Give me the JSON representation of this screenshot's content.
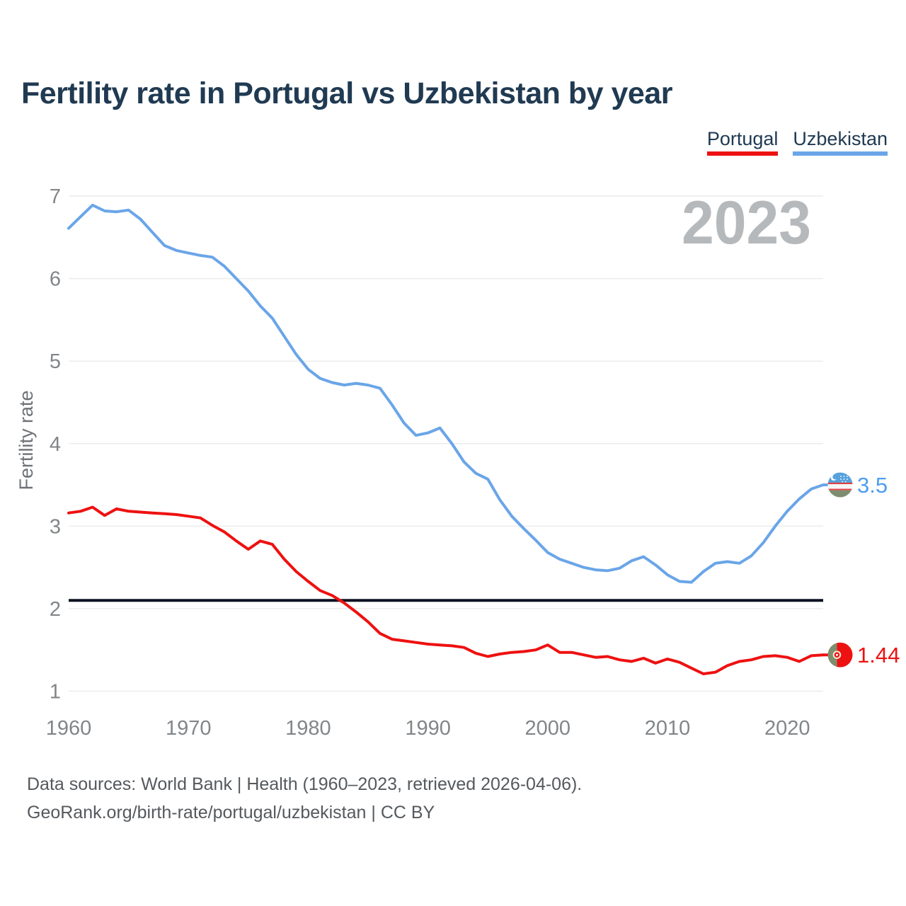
{
  "title": "Fertility rate in Portugal vs Uzbekistan by year",
  "legend": [
    {
      "label": "Portugal",
      "color": "#ee1111"
    },
    {
      "label": "Uzbekistan",
      "color": "#6aa5e8"
    }
  ],
  "footer": {
    "line1": "Data sources: World Bank | Health (1960–2023, retrieved 2026-04-06).",
    "line2": "GeoRank.org/birth-rate/portugal/uzbekistan | CC BY"
  },
  "colors": {
    "title_text": "#203a52",
    "tick_text": "#828689",
    "grid": "#ececec",
    "watermark": "#b6b9bc",
    "footer_text": "#55595d",
    "reference_line": "#0c1220"
  },
  "chart_data": {
    "type": "line",
    "title": "Fertility rate in Portugal vs Uzbekistan by year",
    "ylabel": "Fertility rate",
    "xlabel": "",
    "watermark": "2023",
    "grid": "horizontal",
    "legend_position": "top-right",
    "xlim": [
      1960,
      2023
    ],
    "ylim": [
      1,
      7
    ],
    "x_step_years": 1,
    "x_ticks": [
      1960,
      1970,
      1980,
      1990,
      2000,
      2010,
      2020
    ],
    "y_ticks": [
      1,
      2,
      3,
      4,
      5,
      6,
      7
    ],
    "reference_line": {
      "value": 2.1,
      "color": "#0c1220",
      "label": ""
    },
    "series": [
      {
        "name": "Portugal",
        "color": "#ee1111",
        "label_color": "#ee1111",
        "end_label": "1.44",
        "flag": "portugal",
        "flag_colors": {
          "left": "#7f8e6e",
          "right": "#ee1111",
          "emblem_ring": "#f2ecd2"
        },
        "values": [
          3.16,
          3.18,
          3.23,
          3.13,
          3.21,
          3.18,
          3.17,
          3.16,
          3.15,
          3.14,
          3.12,
          3.1,
          3.01,
          2.93,
          2.82,
          2.72,
          2.82,
          2.78,
          2.6,
          2.45,
          2.33,
          2.22,
          2.16,
          2.07,
          1.96,
          1.84,
          1.7,
          1.63,
          1.61,
          1.59,
          1.57,
          1.56,
          1.55,
          1.53,
          1.46,
          1.42,
          1.45,
          1.47,
          1.48,
          1.5,
          1.56,
          1.47,
          1.47,
          1.44,
          1.41,
          1.42,
          1.38,
          1.36,
          1.4,
          1.34,
          1.39,
          1.35,
          1.28,
          1.21,
          1.23,
          1.31,
          1.36,
          1.38,
          1.42,
          1.43,
          1.41,
          1.36,
          1.43,
          1.44
        ]
      },
      {
        "name": "Uzbekistan",
        "color": "#6aa5e8",
        "label_color": "#4d9ef0",
        "end_label": "3.5",
        "flag": "uzbekistan",
        "flag_colors": {
          "top": "#57a2de",
          "stripe": "#e04343",
          "middle": "#f6f6f6",
          "bottom": "#7e8d70"
        },
        "values": [
          6.61,
          6.75,
          6.89,
          6.82,
          6.81,
          6.83,
          6.72,
          6.56,
          6.4,
          6.34,
          6.31,
          6.28,
          6.26,
          6.15,
          6.0,
          5.85,
          5.67,
          5.52,
          5.3,
          5.08,
          4.9,
          4.79,
          4.74,
          4.71,
          4.73,
          4.71,
          4.67,
          4.47,
          4.25,
          4.1,
          4.13,
          4.19,
          4.0,
          3.78,
          3.64,
          3.57,
          3.32,
          3.12,
          2.97,
          2.83,
          2.68,
          2.6,
          2.55,
          2.5,
          2.47,
          2.46,
          2.49,
          2.58,
          2.63,
          2.53,
          2.41,
          2.33,
          2.32,
          2.45,
          2.55,
          2.57,
          2.55,
          2.64,
          2.8,
          3.0,
          3.18,
          3.33,
          3.45,
          3.5
        ]
      }
    ]
  }
}
